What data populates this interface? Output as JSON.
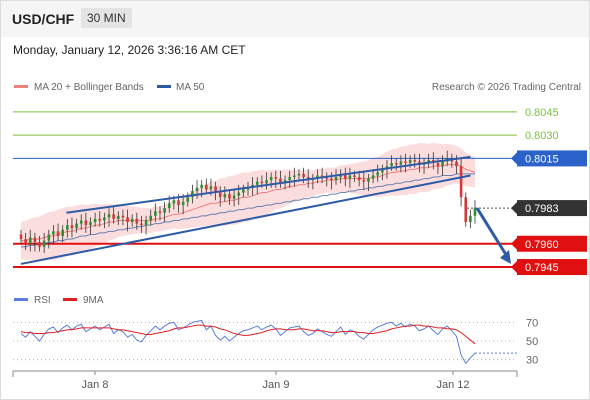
{
  "header": {
    "symbol": "USD/CHF",
    "timeframe": "30 MIN"
  },
  "timestamp": "Monday, January 12, 2026 3:36:16 AM CET",
  "legend": {
    "ma20": "MA 20 + Bollinger Bands",
    "ma50": "MA 50",
    "copyright": "Research © 2026 Trading Central"
  },
  "rsi_legend": {
    "rsi": "RSI",
    "ma9": "9MA"
  },
  "colors": {
    "green_level": "#7cbf3a",
    "blue_level": "#2a62c9",
    "red_level": "#e01010",
    "price": "#333333",
    "up_candle": "#2f8f2f",
    "down_candle": "#d23a3a",
    "ma20": "#f08080",
    "band_fill": "#fbd9d9",
    "ma50": "#2b5aa0",
    "channel": "#2e5ba8",
    "rsi": "#5a7fd8",
    "rsi_ma": "#e02020"
  },
  "chart_data": [
    {
      "type": "candlestick",
      "title": "USD/CHF",
      "ylim": [
        0.7936,
        0.8052
      ],
      "x_ticks": [
        "Jan 8",
        "Jan 9",
        "Jan 12"
      ],
      "levels": [
        {
          "label": "0.8045",
          "value": 0.8045,
          "style": "green"
        },
        {
          "label": "0.8030",
          "value": 0.803,
          "style": "green"
        },
        {
          "label": "0.8015",
          "value": 0.8015,
          "style": "blue"
        },
        {
          "label": "0.7983",
          "value": 0.7983,
          "style": "price"
        },
        {
          "label": "0.7960",
          "value": 0.796,
          "style": "red"
        },
        {
          "label": "0.7945",
          "value": 0.7945,
          "style": "red"
        }
      ],
      "closes": [
        0.7963,
        0.796,
        0.7964,
        0.7961,
        0.7958,
        0.7962,
        0.7966,
        0.7968,
        0.7965,
        0.7969,
        0.7972,
        0.797,
        0.7973,
        0.7975,
        0.7972,
        0.7974,
        0.7976,
        0.7975,
        0.7977,
        0.7979,
        0.7976,
        0.7978,
        0.7977,
        0.7974,
        0.7976,
        0.7973,
        0.7972,
        0.7975,
        0.7978,
        0.7981,
        0.798,
        0.7983,
        0.7986,
        0.7988,
        0.7985,
        0.7987,
        0.799,
        0.7994,
        0.7996,
        0.7998,
        0.7995,
        0.7997,
        0.7993,
        0.799,
        0.7992,
        0.7989,
        0.7991,
        0.7993,
        0.7995,
        0.7996,
        0.7998,
        0.8,
        0.7999,
        0.8001,
        0.8003,
        0.8002,
        0.7999,
        0.8001,
        0.8003,
        0.8004,
        0.8005,
        0.8003,
        0.8001,
        0.8002,
        0.8004,
        0.8003,
        0.8002,
        0.8001,
        0.8003,
        0.8005,
        0.8002,
        0.8004,
        0.8003,
        0.8001,
        0.8,
        0.8002,
        0.8004,
        0.8006,
        0.8008,
        0.801,
        0.8012,
        0.8011,
        0.8013,
        0.8012,
        0.8014,
        0.8013,
        0.8011,
        0.8012,
        0.8014,
        0.8012,
        0.801,
        0.8013,
        0.8015,
        0.8013,
        0.801,
        0.799,
        0.7974,
        0.7978,
        0.7983
      ],
      "ma20": [
        0.7962,
        0.7962,
        0.7963,
        0.7963,
        0.7963,
        0.7964,
        0.7965,
        0.7965,
        0.7966,
        0.7967,
        0.7968,
        0.7968,
        0.7969,
        0.797,
        0.797,
        0.7971,
        0.7972,
        0.7972,
        0.7973,
        0.7974,
        0.7974,
        0.7975,
        0.7975,
        0.7975,
        0.7975,
        0.7975,
        0.7975,
        0.7975,
        0.7975,
        0.7976,
        0.7976,
        0.7977,
        0.7978,
        0.7979,
        0.7979,
        0.798,
        0.7981,
        0.7982,
        0.7983,
        0.7984,
        0.7985,
        0.7986,
        0.7986,
        0.7987,
        0.7987,
        0.7988,
        0.7988,
        0.7989,
        0.799,
        0.799,
        0.7991,
        0.7992,
        0.7993,
        0.7993,
        0.7994,
        0.7995,
        0.7995,
        0.7996,
        0.7997,
        0.7997,
        0.7998,
        0.7998,
        0.7999,
        0.7999,
        0.8,
        0.8,
        0.8001,
        0.8001,
        0.8001,
        0.8002,
        0.8002,
        0.8002,
        0.8002,
        0.8002,
        0.8002,
        0.8002,
        0.8003,
        0.8003,
        0.8004,
        0.8005,
        0.8006,
        0.8006,
        0.8007,
        0.8007,
        0.8008,
        0.8008,
        0.8009,
        0.8009,
        0.8009,
        0.801,
        0.801,
        0.801,
        0.8011,
        0.8011,
        0.8011,
        0.801,
        0.8008,
        0.8007,
        0.8006
      ],
      "ma50": [
        0.7958,
        0.7958,
        0.7959,
        0.7959,
        0.796,
        0.796,
        0.7961,
        0.7961,
        0.7962,
        0.7962,
        0.7963,
        0.7963,
        0.7964,
        0.7965,
        0.7965,
        0.7966,
        0.7966,
        0.7967,
        0.7967,
        0.7968,
        0.7968,
        0.7969,
        0.7969,
        0.797,
        0.797,
        0.7971,
        0.7971,
        0.7972,
        0.7972,
        0.7973,
        0.7973,
        0.7974,
        0.7974,
        0.7975,
        0.7975,
        0.7976,
        0.7976,
        0.7977,
        0.7977,
        0.7978,
        0.7978,
        0.7979,
        0.7979,
        0.798,
        0.798,
        0.7981,
        0.7981,
        0.7982,
        0.7982,
        0.7983,
        0.7983,
        0.7984,
        0.7984,
        0.7985,
        0.7985,
        0.7986,
        0.7986,
        0.7987,
        0.7987,
        0.7988,
        0.7988,
        0.7989,
        0.7989,
        0.799,
        0.799,
        0.7991,
        0.7991,
        0.7992,
        0.7992,
        0.7993,
        0.7993,
        0.7994,
        0.7994,
        0.7995,
        0.7995,
        0.7996,
        0.7996,
        0.7997,
        0.7997,
        0.7998,
        0.7998,
        0.7999,
        0.7999,
        0.8,
        0.8,
        0.8001,
        0.8001,
        0.8002,
        0.8002,
        0.8003,
        0.8003,
        0.8004,
        0.8004,
        0.8004,
        0.8005,
        0.8005,
        0.8005,
        0.8005,
        0.8005
      ],
      "channel_upper": [
        [
          0.8,
          0.798
        ],
        [
          0.99,
          0.8016
        ]
      ],
      "channel_lower": [
        [
          0.0,
          0.7947
        ],
        [
          0.99,
          0.8004
        ]
      ],
      "forecast_arrow": [
        0.7983,
        0.7947
      ]
    },
    {
      "type": "line",
      "title": "RSI",
      "ylim": [
        20,
        80
      ],
      "y_ticks": [
        "70",
        "50",
        "30"
      ],
      "series": [
        {
          "name": "RSI",
          "values": [
            58,
            54,
            60,
            55,
            50,
            57,
            63,
            65,
            59,
            64,
            67,
            62,
            66,
            68,
            60,
            63,
            66,
            62,
            65,
            68,
            58,
            62,
            60,
            54,
            57,
            51,
            49,
            56,
            61,
            66,
            62,
            66,
            69,
            70,
            62,
            64,
            67,
            70,
            71,
            72,
            62,
            66,
            56,
            51,
            55,
            50,
            54,
            58,
            61,
            62,
            64,
            66,
            62,
            65,
            67,
            63,
            56,
            60,
            64,
            65,
            66,
            60,
            56,
            58,
            63,
            60,
            57,
            55,
            60,
            65,
            57,
            62,
            60,
            55,
            52,
            57,
            62,
            65,
            67,
            69,
            70,
            66,
            69,
            65,
            68,
            66,
            61,
            63,
            66,
            61,
            57,
            63,
            66,
            61,
            55,
            35,
            26,
            32,
            37
          ]
        },
        {
          "name": "9MA",
          "values": [
            60,
            59,
            59,
            58,
            58,
            58,
            59,
            59,
            60,
            61,
            62,
            62,
            63,
            64,
            64,
            64,
            64,
            64,
            64,
            64,
            63,
            62,
            62,
            61,
            60,
            59,
            58,
            57,
            57,
            58,
            59,
            60,
            61,
            63,
            64,
            64,
            65,
            66,
            67,
            67,
            66,
            66,
            65,
            63,
            62,
            60,
            58,
            57,
            56,
            56,
            57,
            58,
            59,
            61,
            62,
            63,
            63,
            62,
            62,
            62,
            63,
            63,
            62,
            61,
            61,
            61,
            60,
            59,
            59,
            60,
            60,
            60,
            60,
            59,
            59,
            58,
            58,
            59,
            60,
            61,
            63,
            64,
            65,
            66,
            66,
            67,
            67,
            66,
            66,
            65,
            64,
            64,
            63,
            63,
            62,
            59,
            55,
            51,
            47
          ]
        }
      ]
    }
  ]
}
